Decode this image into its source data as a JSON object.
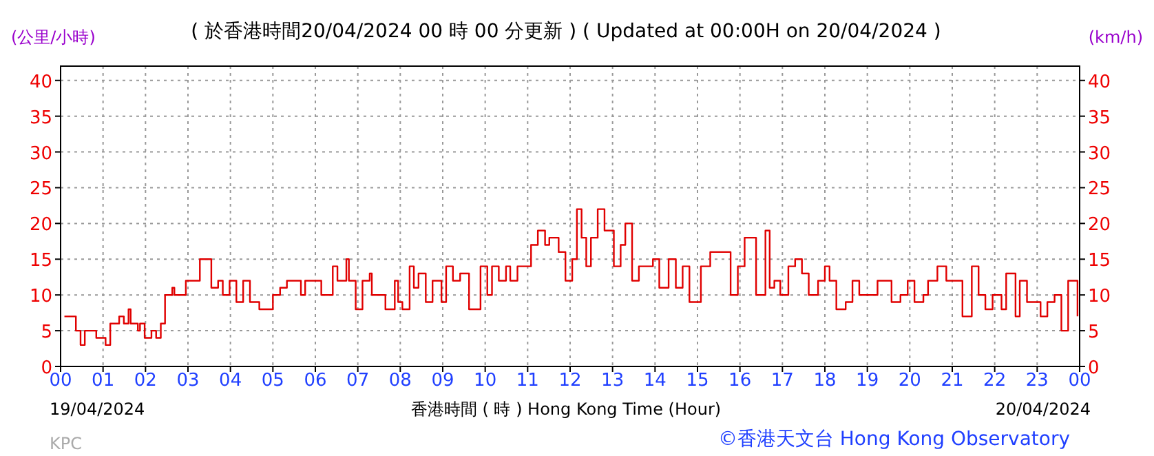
{
  "chart_data": {
    "type": "step",
    "title": "( 於香港時間20/04/2024 00 時 00 分更新 ) ( Updated at 00:00H on 20/04/2024 )",
    "ylabel": "(公里/小時)",
    "y2label": "(km/h)",
    "xlabel": "香港時間 ( 時 )  Hong Kong Time (Hour)",
    "annotations": [
      "19/04/2024",
      "20/04/2024",
      "KPC",
      "©香港天文台 Hong Kong Observatory"
    ],
    "xlim": [
      0,
      24
    ],
    "ylim": [
      0,
      42
    ],
    "y2lim": [
      0,
      42
    ],
    "xticks": [
      {
        "value": 0,
        "label": "00"
      },
      {
        "value": 1,
        "label": "01"
      },
      {
        "value": 2,
        "label": "02"
      },
      {
        "value": 3,
        "label": "03"
      },
      {
        "value": 4,
        "label": "04"
      },
      {
        "value": 5,
        "label": "05"
      },
      {
        "value": 6,
        "label": "06"
      },
      {
        "value": 7,
        "label": "07"
      },
      {
        "value": 8,
        "label": "08"
      },
      {
        "value": 9,
        "label": "09"
      },
      10,
      11,
      12,
      13,
      14,
      15,
      16,
      17,
      18,
      19,
      20,
      21,
      22,
      23,
      {
        "value": 24,
        "label": "00"
      }
    ],
    "yticks": [
      0,
      5,
      10,
      15,
      20,
      25,
      30,
      35,
      40
    ],
    "y2ticks": [
      0,
      5,
      10,
      15,
      20,
      25,
      30,
      35,
      40
    ],
    "grid": true,
    "line_style": "solid",
    "series": [
      {
        "color": "#e00000",
        "x": [
          0.09,
          0.25,
          0.36,
          0.47,
          0.57,
          0.73,
          0.84,
          1.0,
          1.06,
          1.17,
          1.33,
          1.38,
          1.49,
          1.6,
          1.65,
          1.82,
          1.87,
          1.98,
          2.14,
          2.25,
          2.36,
          2.46,
          2.63,
          2.68,
          2.84,
          2.95,
          3.11,
          3.28,
          3.38,
          3.55,
          3.71,
          3.82,
          3.98,
          4.14,
          4.3,
          4.46,
          4.63,
          4.68,
          4.9,
          5.0,
          5.17,
          5.33,
          5.55,
          5.66,
          5.76,
          6.03,
          6.14,
          6.3,
          6.41,
          6.52,
          6.73,
          6.79,
          6.95,
          7.11,
          7.28,
          7.33,
          7.55,
          7.65,
          7.87,
          7.95,
          8.05,
          8.22,
          8.32,
          8.43,
          8.6,
          8.76,
          8.86,
          8.97,
          9.08,
          9.24,
          9.41,
          9.62,
          9.73,
          9.89,
          10.05,
          10.16,
          10.32,
          10.49,
          10.59,
          10.76,
          10.92,
          11.08,
          11.24,
          11.41,
          11.51,
          11.73,
          11.89,
          12.05,
          12.16,
          12.27,
          12.38,
          12.49,
          12.65,
          12.81,
          13.03,
          13.19,
          13.3,
          13.46,
          13.62,
          13.78,
          13.95,
          14.1,
          14.32,
          14.49,
          14.65,
          14.81,
          15.08,
          15.3,
          15.51,
          15.78,
          15.95,
          16.11,
          16.22,
          16.38,
          16.49,
          16.6,
          16.7,
          16.81,
          16.95,
          17.14,
          17.3,
          17.46,
          17.62,
          17.84,
          18.0,
          18.11,
          18.27,
          18.49,
          18.65,
          18.81,
          19.14,
          19.24,
          19.46,
          19.57,
          19.78,
          19.95,
          20.11,
          20.32,
          20.43,
          20.65,
          20.86,
          21.03,
          21.24,
          21.46,
          21.62,
          21.78,
          21.95,
          22.16,
          22.27,
          22.49,
          22.59,
          22.76,
          22.92,
          23.08,
          23.24,
          23.41,
          23.57,
          23.73,
          23.95
        ],
        "values": [
          7,
          7,
          5,
          3,
          5,
          5,
          4,
          4,
          3,
          6,
          6,
          7,
          6,
          8,
          6,
          5,
          6,
          4,
          5,
          4,
          6,
          10,
          11,
          10,
          10,
          12,
          12,
          15,
          15,
          11,
          12,
          10,
          12,
          9,
          12,
          9,
          9,
          8,
          8,
          10,
          11,
          12,
          12,
          10,
          12,
          12,
          10,
          10,
          14,
          12,
          15,
          12,
          8,
          12,
          13,
          10,
          10,
          8,
          12,
          9,
          8,
          14,
          11,
          13,
          9,
          12,
          12,
          9,
          14,
          12,
          13,
          8,
          8,
          14,
          10,
          14,
          12,
          14,
          12,
          14,
          14,
          17,
          19,
          17,
          18,
          16,
          12,
          15,
          22,
          18,
          14,
          18,
          22,
          19,
          14,
          17,
          20,
          12,
          14,
          14,
          15,
          11,
          15,
          11,
          14,
          9,
          14,
          16,
          16,
          10,
          14,
          18,
          18,
          10,
          10,
          19,
          11,
          12,
          10,
          14,
          15,
          13,
          10,
          12,
          14,
          12,
          8,
          9,
          12,
          10,
          10,
          12,
          12,
          9,
          10,
          12,
          9,
          10,
          12,
          14,
          12,
          12,
          7,
          14,
          10,
          8,
          10,
          8,
          13,
          7,
          12,
          9,
          9,
          7,
          9,
          10,
          5,
          12,
          7
        ]
      }
    ]
  }
}
